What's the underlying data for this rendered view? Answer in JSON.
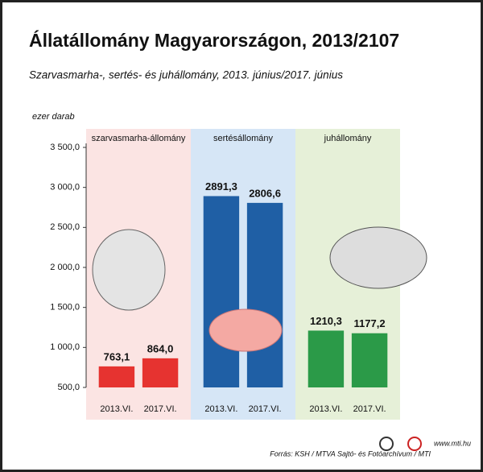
{
  "chart_data": {
    "type": "bar",
    "title": "Állatállomány Magyarországon, 2013/2107",
    "subtitle": "Szarvasmarha-, sertés- és juhállomány, 2013. június/2017. június",
    "y_label": "ezer darab",
    "ylim": [
      500,
      3500
    ],
    "yticks": [
      {
        "value": 500,
        "label": "500,0"
      },
      {
        "value": 1000,
        "label": "1 000,0"
      },
      {
        "value": 1500,
        "label": "1 500,0"
      },
      {
        "value": 2000,
        "label": "2 000,0"
      },
      {
        "value": 2500,
        "label": "2 500,0"
      },
      {
        "value": 3000,
        "label": "3 000,0"
      },
      {
        "value": 3500,
        "label": "3 500,0"
      }
    ],
    "groups": [
      {
        "name": "szarvasmarha-állomány",
        "background": "#fbe4e3",
        "color": "#e63330",
        "categories": [
          "2013.VI.",
          "2017.VI."
        ],
        "values": [
          763.1,
          864.0
        ],
        "value_labels": [
          "763,1",
          "864,0"
        ]
      },
      {
        "name": "sertésállomány",
        "background": "#d6e6f6",
        "color": "#1f5fa5",
        "categories": [
          "2013.VI.",
          "2017.VI."
        ],
        "values": [
          2891.3,
          2806.6
        ],
        "value_labels": [
          "2891,3",
          "2806,6"
        ]
      },
      {
        "name": "juhállomány",
        "background": "#e6f0d8",
        "color": "#2b9a48",
        "categories": [
          "2013.VI.",
          "2017.VI."
        ],
        "values": [
          1210.3,
          1177.2
        ],
        "value_labels": [
          "1210,3",
          "1177,2"
        ]
      }
    ]
  },
  "footer": {
    "source": "Forrás: KSH / MTVA Sajtó- és Fotóarchívum / MTI",
    "website": "www.mti.hu"
  }
}
